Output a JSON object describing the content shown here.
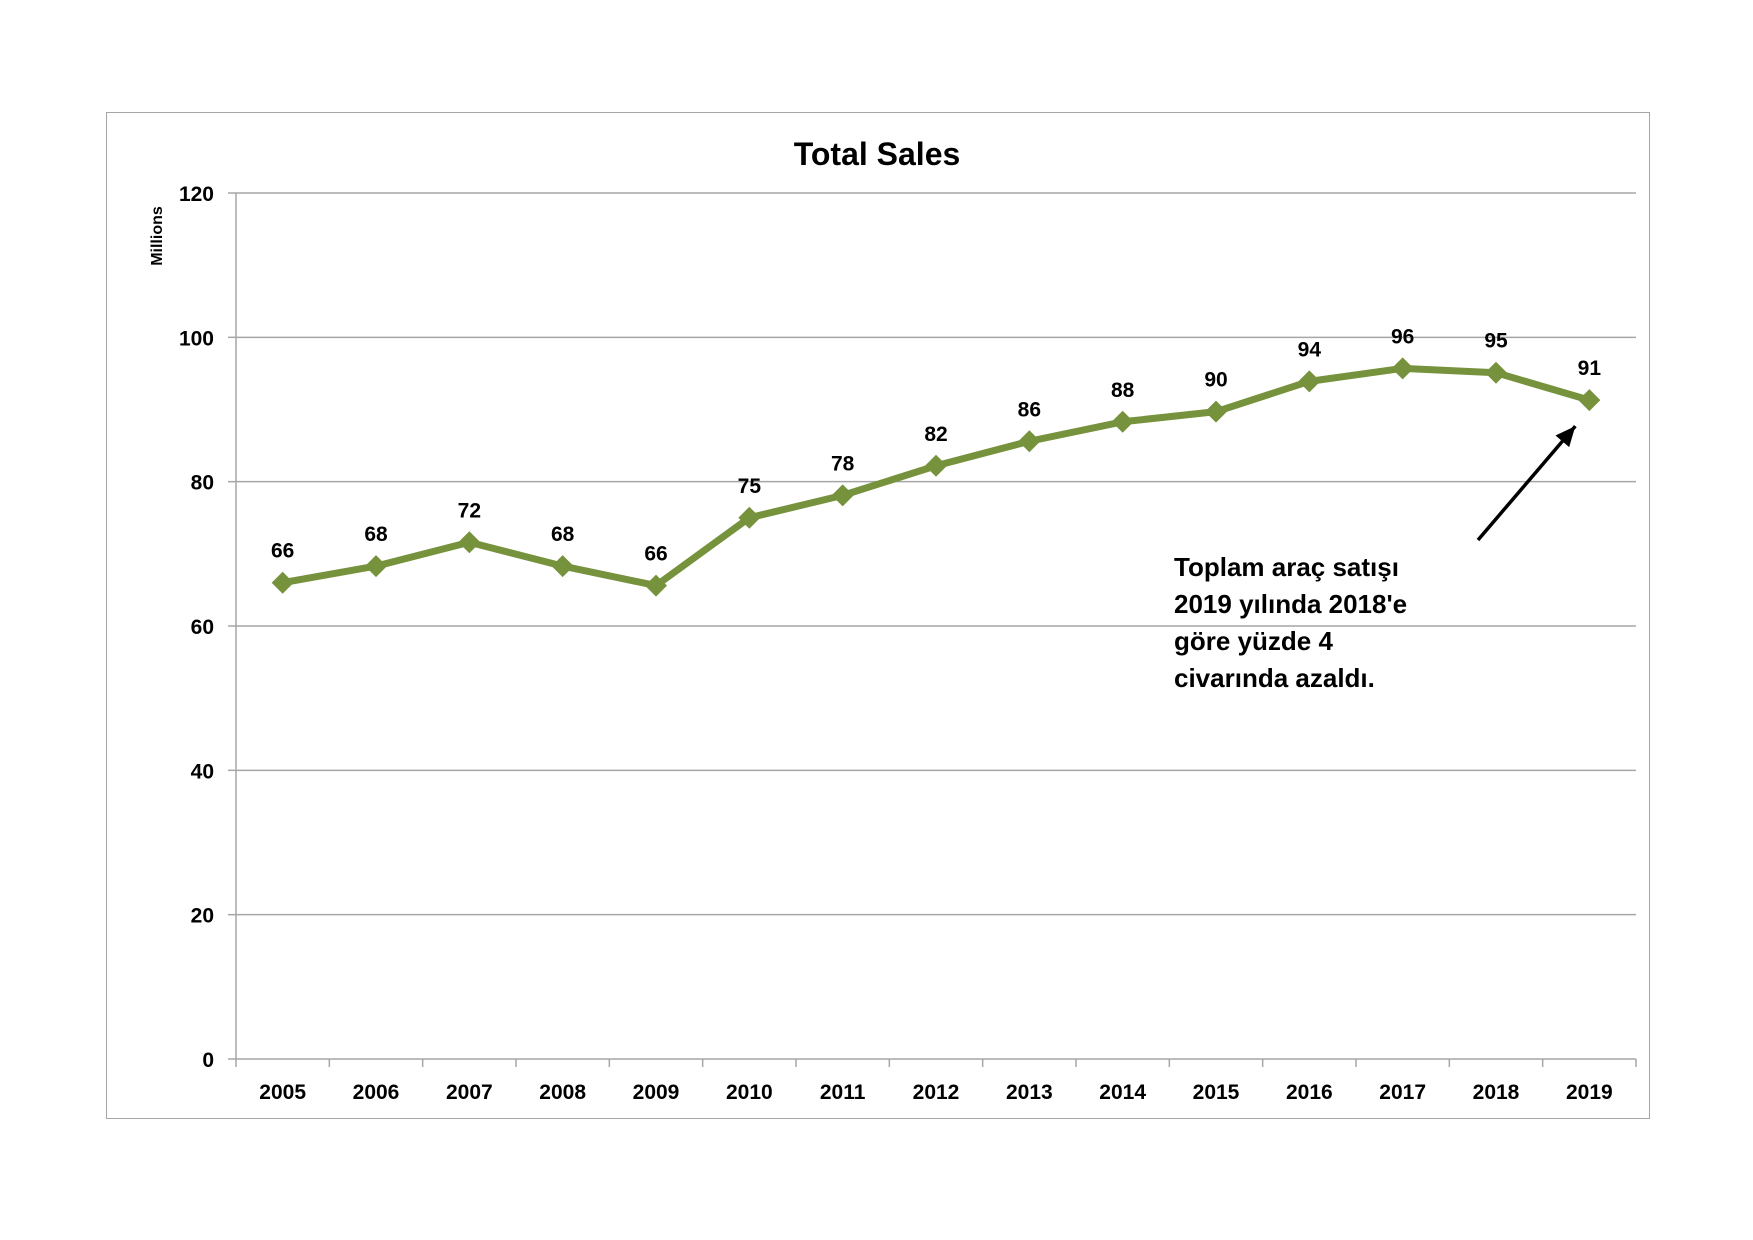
{
  "chart_data": {
    "type": "line",
    "title": "Total Sales",
    "unit_label": "Millions",
    "xlabel": "",
    "ylabel": "",
    "categories": [
      "2005",
      "2006",
      "2007",
      "2008",
      "2009",
      "2010",
      "2011",
      "2012",
      "2013",
      "2014",
      "2015",
      "2016",
      "2017",
      "2018",
      "2019"
    ],
    "series": [
      {
        "values": [
          66,
          68.3,
          71.6,
          68.3,
          65.6,
          75,
          78.1,
          82.2,
          85.6,
          88.3,
          89.7,
          93.9,
          95.7,
          95.1,
          91.3
        ],
        "data_labels": [
          "66",
          "68",
          "72",
          "68",
          "66",
          "75",
          "78",
          "82",
          "86",
          "88",
          "90",
          "94",
          "96",
          "95",
          "91"
        ],
        "color": "#76923c",
        "marker": "diamond"
      }
    ],
    "ylim": [
      0,
      120
    ],
    "yticks": [
      0,
      20,
      40,
      60,
      80,
      100,
      120
    ],
    "grid": true,
    "legend": "none",
    "annotation": {
      "lines": [
        "Toplam araç satışı",
        "2019 yılında 2018'e",
        "göre yüzde 4",
        "civarında azaldı."
      ],
      "arrow_target_category": "2019"
    },
    "colors": {
      "line": "#76923c",
      "grid": "#a6a6a6",
      "axis": "#a6a6a6",
      "frame": "#a6a6a6"
    }
  }
}
